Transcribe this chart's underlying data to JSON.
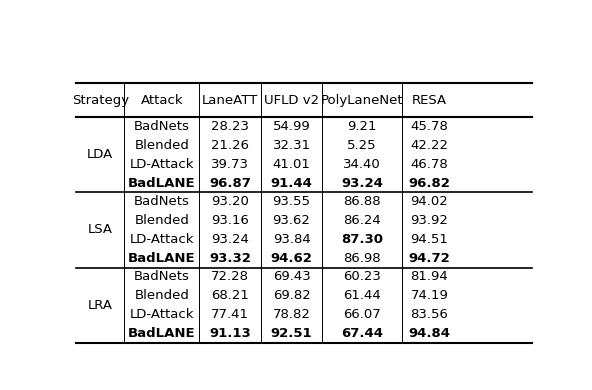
{
  "columns": [
    "Strategy",
    "Attack",
    "LaneATT",
    "UFLD v2",
    "PolyLaneNet",
    "RESA"
  ],
  "sections": [
    {
      "strategy": "LDA",
      "rows": [
        {
          "attack": "BadNets",
          "LaneATT": "28.23",
          "UFLD v2": "54.99",
          "PolyLaneNet": "9.21",
          "RESA": "45.78"
        },
        {
          "attack": "Blended",
          "LaneATT": "21.26",
          "UFLD v2": "32.31",
          "PolyLaneNet": "5.25",
          "RESA": "42.22"
        },
        {
          "attack": "LD-Attack",
          "LaneATT": "39.73",
          "UFLD v2": "41.01",
          "PolyLaneNet": "34.40",
          "RESA": "46.78"
        },
        {
          "attack": "BadLANE",
          "LaneATT": "96.87",
          "UFLD v2": "91.44",
          "PolyLaneNet": "93.24",
          "RESA": "96.82"
        }
      ],
      "bold_per_row": {
        "BadNets": [],
        "Blended": [],
        "LD-Attack": [],
        "BadLANE": [
          "attack",
          "LaneATT",
          "UFLD v2",
          "PolyLaneNet",
          "RESA"
        ]
      }
    },
    {
      "strategy": "LSA",
      "rows": [
        {
          "attack": "BadNets",
          "LaneATT": "93.20",
          "UFLD v2": "93.55",
          "PolyLaneNet": "86.88",
          "RESA": "94.02"
        },
        {
          "attack": "Blended",
          "LaneATT": "93.16",
          "UFLD v2": "93.62",
          "PolyLaneNet": "86.24",
          "RESA": "93.92"
        },
        {
          "attack": "LD-Attack",
          "LaneATT": "93.24",
          "UFLD v2": "93.84",
          "PolyLaneNet": "87.30",
          "RESA": "94.51"
        },
        {
          "attack": "BadLANE",
          "LaneATT": "93.32",
          "UFLD v2": "94.62",
          "PolyLaneNet": "86.98",
          "RESA": "94.72"
        }
      ],
      "bold_per_row": {
        "BadNets": [],
        "Blended": [],
        "LD-Attack": [
          "PolyLaneNet"
        ],
        "BadLANE": [
          "attack",
          "LaneATT",
          "UFLD v2",
          "RESA"
        ]
      }
    },
    {
      "strategy": "LRA",
      "rows": [
        {
          "attack": "BadNets",
          "LaneATT": "72.28",
          "UFLD v2": "69.43",
          "PolyLaneNet": "60.23",
          "RESA": "81.94"
        },
        {
          "attack": "Blended",
          "LaneATT": "68.21",
          "UFLD v2": "69.82",
          "PolyLaneNet": "61.44",
          "RESA": "74.19"
        },
        {
          "attack": "LD-Attack",
          "LaneATT": "77.41",
          "UFLD v2": "78.82",
          "PolyLaneNet": "66.07",
          "RESA": "83.56"
        },
        {
          "attack": "BadLANE",
          "LaneATT": "91.13",
          "UFLD v2": "92.51",
          "PolyLaneNet": "67.44",
          "RESA": "94.84"
        }
      ],
      "bold_per_row": {
        "BadNets": [],
        "Blended": [],
        "LD-Attack": [],
        "BadLANE": [
          "attack",
          "LaneATT",
          "UFLD v2",
          "PolyLaneNet",
          "RESA"
        ]
      }
    }
  ],
  "font_size": 9.5,
  "bg_color": "white"
}
